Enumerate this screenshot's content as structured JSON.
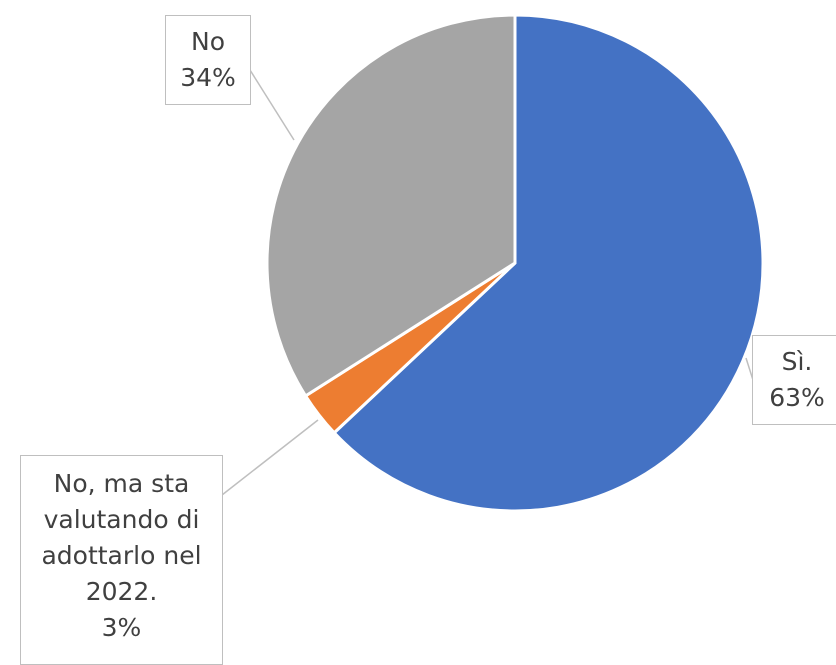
{
  "chart_data": {
    "type": "pie",
    "categories": [
      "Sì.",
      "No, ma sta valutando di adottarlo nel 2022.",
      "No"
    ],
    "values": [
      63,
      3,
      34
    ],
    "value_labels": [
      "63%",
      "3%",
      "34%"
    ],
    "colors": [
      "#4472c4",
      "#ed7d31",
      "#a5a5a5"
    ]
  }
}
